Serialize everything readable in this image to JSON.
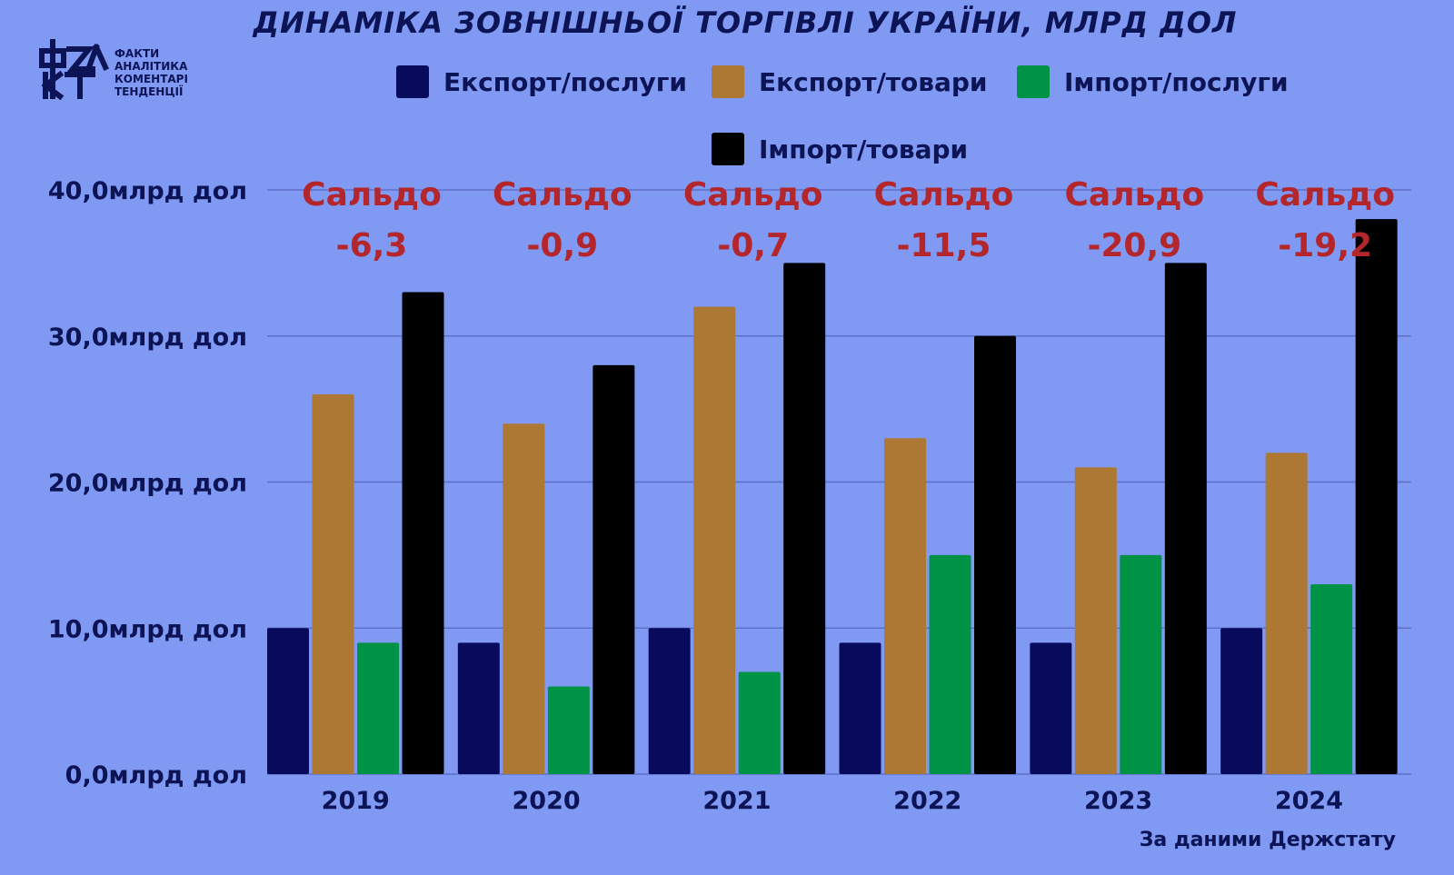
{
  "title": "ДИНАМІКА ЗОВНІШНЬОЇ ТОРГІВЛІ УКРАЇНИ, МЛРД ДОЛ",
  "logo": {
    "mark": "ФАКТ",
    "lines": [
      "ФАКТИ",
      "АНАЛІТИКА",
      "КОМЕНТАРІ",
      "ТЕНДЕНЦІЇ"
    ]
  },
  "source": "За даними Держстату",
  "colors": {
    "background": "#8099f2",
    "text": "#0d1456",
    "saldo": "#b3262b",
    "grid": "#5d70c9"
  },
  "chart_data": {
    "type": "bar",
    "categories": [
      "2019",
      "2020",
      "2021",
      "2022",
      "2023",
      "2024"
    ],
    "series": [
      {
        "name": "Експорт/послуги",
        "color": "#080a5c",
        "values": [
          10,
          9,
          10,
          9,
          9,
          10
        ]
      },
      {
        "name": "Експорт/товари",
        "color": "#ad7734",
        "values": [
          26,
          24,
          32,
          23,
          21,
          22
        ]
      },
      {
        "name": "Імпорт/послуги",
        "color": "#009245",
        "values": [
          9,
          6,
          7,
          15,
          15,
          13
        ]
      },
      {
        "name": "Імпорт/товари",
        "color": "#000000",
        "values": [
          33,
          28,
          35,
          30,
          35,
          38
        ]
      }
    ],
    "ylim": [
      0,
      40
    ],
    "yticks": [
      "0,0млрд дол",
      "10,0млрд дол",
      "20,0млрд дол",
      "30,0млрд дол",
      "40,0млрд дол"
    ],
    "ytick_values": [
      0,
      10,
      20,
      30,
      40
    ],
    "grid": true,
    "legend_position": "top",
    "annotations": [
      {
        "label": "Сальдо",
        "value": "-6,3"
      },
      {
        "label": "Сальдо",
        "value": "-0,9"
      },
      {
        "label": "Сальдо",
        "value": "-0,7"
      },
      {
        "label": "Сальдо",
        "value": "-11,5"
      },
      {
        "label": "Сальдо",
        "value": "-20,9"
      },
      {
        "label": "Сальдо",
        "value": "-19,2"
      }
    ]
  }
}
